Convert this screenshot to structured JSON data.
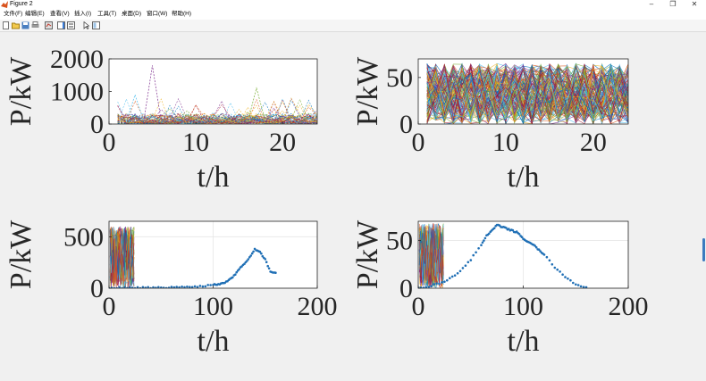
{
  "window": {
    "title": "Figure 2"
  },
  "menu": [
    "文件(F)",
    "编辑(E)",
    "查看(V)",
    "插入(I)",
    "工具(T)",
    "桌面(D)",
    "窗口(W)",
    "帮助(H)"
  ],
  "toolbar": {
    "tools": [
      "new-figure-icon",
      "open-file-icon",
      "save-icon",
      "print-icon",
      "link-plot-icon",
      "insert-colorbar-icon",
      "insert-legend-icon",
      "select-arrow-icon",
      "property-inspector-icon"
    ]
  },
  "colors": {
    "scatter": "#1f6fb5",
    "palette": [
      "#0072bd",
      "#d95319",
      "#edb120",
      "#7e2f8e",
      "#77ac30",
      "#4dbeee",
      "#a2142f"
    ]
  },
  "charts": [
    {
      "type": "line",
      "ylabel": "P/kW",
      "xlabel": "t/h",
      "xlim": [
        0,
        24
      ],
      "ylim": [
        0,
        2000
      ],
      "xticks": [
        "0",
        "10",
        "20"
      ],
      "yticks": [
        "0",
        "1000",
        "2000"
      ],
      "style": "dashed",
      "series_count": 60,
      "x_range": [
        1,
        24
      ],
      "typical_range": [
        0,
        300
      ],
      "peaks": [
        {
          "x": 5,
          "y": 1800
        },
        {
          "x": 17,
          "y": 1100
        },
        {
          "x": 3,
          "y": 900
        }
      ]
    },
    {
      "type": "line",
      "ylabel": "P/kW",
      "xlabel": "t/h",
      "xlim": [
        0,
        24
      ],
      "ylim": [
        0,
        70
      ],
      "xticks": [
        "0",
        "10",
        "20"
      ],
      "yticks": [
        "0",
        "50"
      ],
      "style": "solid",
      "series_count": 120,
      "x_range": [
        1,
        24
      ],
      "typical_range": [
        0,
        65
      ]
    },
    {
      "type": "scatter",
      "ylabel": "P/kW",
      "xlabel": "t/h",
      "xlim": [
        0,
        200
      ],
      "ylim": [
        0,
        650
      ],
      "xticks": [
        "0",
        "100",
        "200"
      ],
      "yticks": [
        "0",
        "500"
      ],
      "grid": true,
      "lines": {
        "x_range": [
          1,
          24
        ],
        "typical_range": [
          0,
          600
        ],
        "series_count": 30
      },
      "scatter": {
        "x": [
          0,
          10,
          20,
          30,
          40,
          50,
          60,
          70,
          80,
          90,
          100,
          105,
          110,
          115,
          120,
          125,
          130,
          135,
          140,
          145,
          150,
          155,
          160
        ],
        "y": [
          0,
          5,
          5,
          5,
          5,
          5,
          8,
          10,
          15,
          20,
          35,
          40,
          50,
          80,
          120,
          190,
          240,
          300,
          380,
          350,
          280,
          160,
          150
        ]
      }
    },
    {
      "type": "scatter",
      "ylabel": "P/kW",
      "xlabel": "t/h",
      "xlim": [
        0,
        200
      ],
      "ylim": [
        0,
        70
      ],
      "xticks": [
        "0",
        "100",
        "200"
      ],
      "yticks": [
        "0",
        "50"
      ],
      "grid": true,
      "lines": {
        "x_range": [
          1,
          24
        ],
        "typical_range": [
          0,
          68
        ],
        "series_count": 30
      },
      "scatter": {
        "x": [
          0,
          10,
          20,
          30,
          40,
          50,
          60,
          65,
          70,
          75,
          80,
          85,
          90,
          95,
          100,
          105,
          110,
          115,
          120,
          130,
          140,
          150,
          160
        ],
        "y": [
          0,
          2,
          5,
          10,
          18,
          30,
          45,
          55,
          60,
          66,
          64,
          62,
          60,
          58,
          52,
          48,
          45,
          40,
          35,
          22,
          12,
          4,
          1
        ]
      }
    }
  ]
}
